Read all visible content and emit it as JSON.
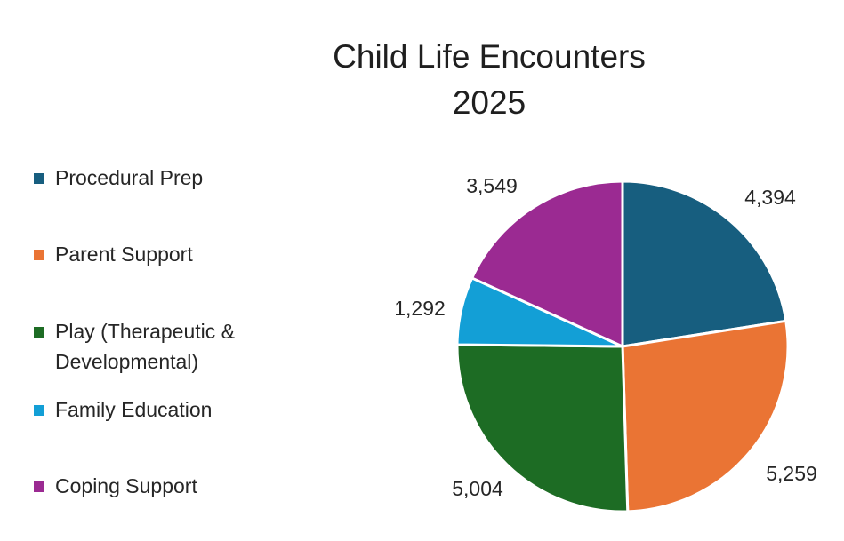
{
  "chart_data": {
    "type": "pie",
    "title": "Child Life Encounters",
    "subtitle": "2025",
    "categories": [
      "Procedural Prep",
      "Parent Support",
      "Play (Therapeutic & Developmental)",
      "Family Education",
      "Coping Support"
    ],
    "values": [
      4394,
      5259,
      5004,
      1292,
      3549
    ],
    "value_labels": [
      "4,394",
      "5,259",
      "5,004",
      "1,292",
      "3,549"
    ],
    "colors": [
      "#175E7F",
      "#EA7434",
      "#1D6C24",
      "#139FD6",
      "#9B2A92"
    ],
    "legend_position": "left"
  }
}
